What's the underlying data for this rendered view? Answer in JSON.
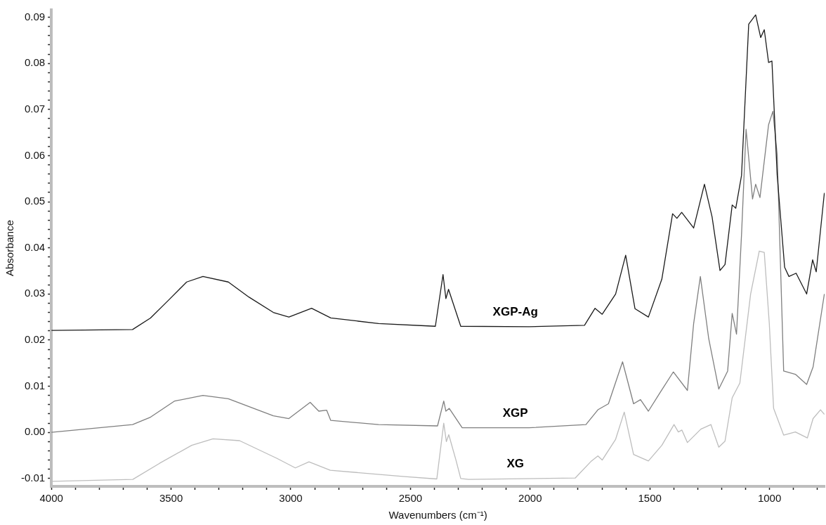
{
  "chart_data": {
    "type": "line",
    "xlabel": "Wavenumbers (cm⁻¹)",
    "ylabel": "Absorbance",
    "xlim": [
      4000,
      770
    ],
    "ylim": [
      -0.0117,
      0.0916
    ],
    "xticks": [
      4000,
      {
        "value": 3900,
        "label": null
      },
      {
        "value": 3800,
        "label": null
      },
      {
        "value": 3700,
        "label": null
      },
      {
        "value": 3600,
        "label": null
      },
      3500,
      {
        "value": 3400,
        "label": null
      },
      {
        "value": 3300,
        "label": null
      },
      {
        "value": 3200,
        "label": null
      },
      {
        "value": 3100,
        "label": null
      },
      3000,
      {
        "value": 2900,
        "label": null
      },
      {
        "value": 2800,
        "label": null
      },
      {
        "value": 2700,
        "label": null
      },
      {
        "value": 2600,
        "label": null
      },
      2500,
      {
        "value": 2400,
        "label": null
      },
      {
        "value": 2300,
        "label": null
      },
      {
        "value": 2200,
        "label": null
      },
      {
        "value": 2100,
        "label": null
      },
      2000,
      {
        "value": 1900,
        "label": null
      },
      {
        "value": 1800,
        "label": null
      },
      {
        "value": 1700,
        "label": null
      },
      {
        "value": 1600,
        "label": null
      },
      1500,
      {
        "value": 1400,
        "label": null
      },
      {
        "value": 1300,
        "label": null
      },
      {
        "value": 1200,
        "label": null
      },
      {
        "value": 1100,
        "label": null
      },
      1000,
      {
        "value": 900,
        "label": null
      },
      {
        "value": 800,
        "label": null
      }
    ],
    "yticks": [
      -0.01,
      {
        "value": -0.008,
        "label": null
      },
      {
        "value": -0.006,
        "label": null
      },
      {
        "value": -0.004,
        "label": null
      },
      {
        "value": -0.002,
        "label": null
      },
      {
        "value": 0,
        "label": "0.00"
      },
      {
        "value": 0.002,
        "label": null
      },
      {
        "value": 0.004,
        "label": null
      },
      {
        "value": 0.006,
        "label": null
      },
      {
        "value": 0.008,
        "label": null
      },
      0.01,
      {
        "value": 0.012,
        "label": null
      },
      {
        "value": 0.014,
        "label": null
      },
      {
        "value": 0.016,
        "label": null
      },
      {
        "value": 0.018,
        "label": null
      },
      0.02,
      {
        "value": 0.022,
        "label": null
      },
      {
        "value": 0.024,
        "label": null
      },
      {
        "value": 0.026,
        "label": null
      },
      {
        "value": 0.028,
        "label": null
      },
      0.03,
      {
        "value": 0.032,
        "label": null
      },
      {
        "value": 0.034,
        "label": null
      },
      {
        "value": 0.036,
        "label": null
      },
      {
        "value": 0.038,
        "label": null
      },
      0.04,
      {
        "value": 0.042,
        "label": null
      },
      {
        "value": 0.044,
        "label": null
      },
      {
        "value": 0.046,
        "label": null
      },
      {
        "value": 0.048,
        "label": null
      },
      0.05,
      {
        "value": 0.052,
        "label": null
      },
      {
        "value": 0.054,
        "label": null
      },
      {
        "value": 0.056,
        "label": null
      },
      {
        "value": 0.058,
        "label": null
      },
      0.06,
      {
        "value": 0.062,
        "label": null
      },
      {
        "value": 0.064,
        "label": null
      },
      {
        "value": 0.066,
        "label": null
      },
      {
        "value": 0.068,
        "label": null
      },
      0.07,
      {
        "value": 0.072,
        "label": null
      },
      {
        "value": 0.074,
        "label": null
      },
      {
        "value": 0.076,
        "label": null
      },
      {
        "value": 0.078,
        "label": null
      },
      0.08,
      {
        "value": 0.082,
        "label": null
      },
      {
        "value": 0.084,
        "label": null
      },
      {
        "value": 0.086,
        "label": null
      },
      {
        "value": 0.088,
        "label": null
      },
      0.09
    ],
    "grid": false,
    "legend": false,
    "marker": "none",
    "line_style": "solid",
    "series": [
      {
        "name": "XGP-Ag",
        "color": "#1a1a1a",
        "x": [
          4000,
          3661,
          3586,
          3510,
          3435,
          3367,
          3261,
          3174,
          3073,
          3008,
          2913,
          2833,
          2633,
          2396,
          2364,
          2352,
          2341,
          2290,
          2005,
          1773,
          1729,
          1699,
          1643,
          1601,
          1562,
          1506,
          1450,
          1405,
          1387,
          1367,
          1317,
          1272,
          1240,
          1207,
          1186,
          1156,
          1141,
          1117,
          1087,
          1058,
          1037,
          1022,
          1004,
          990,
          968,
          937,
          919,
          889,
          845,
          820,
          805,
          771
        ],
        "values": [
          0.0221,
          0.0223,
          0.0248,
          0.0287,
          0.0326,
          0.0338,
          0.0326,
          0.0293,
          0.026,
          0.025,
          0.0269,
          0.0248,
          0.0236,
          0.023,
          0.0342,
          0.029,
          0.031,
          0.023,
          0.0229,
          0.0232,
          0.0269,
          0.0256,
          0.03,
          0.0384,
          0.0268,
          0.025,
          0.0332,
          0.0474,
          0.0464,
          0.0477,
          0.0443,
          0.0538,
          0.0467,
          0.0351,
          0.0364,
          0.0493,
          0.0486,
          0.0557,
          0.0885,
          0.0905,
          0.0856,
          0.0873,
          0.0802,
          0.0805,
          0.0557,
          0.0358,
          0.0338,
          0.0345,
          0.03,
          0.0374,
          0.0348,
          0.0519
        ]
      },
      {
        "name": "XGP",
        "color": "#7f7f7f",
        "x": [
          4000,
          3661,
          3586,
          3485,
          3367,
          3261,
          3073,
          3008,
          2919,
          2883,
          2850,
          2833,
          2633,
          2387,
          2361,
          2352,
          2338,
          2284,
          2005,
          1767,
          1717,
          1673,
          1614,
          1568,
          1539,
          1506,
          1455,
          1402,
          1343,
          1317,
          1289,
          1254,
          1212,
          1175,
          1156,
          1138,
          1117,
          1098,
          1071,
          1058,
          1040,
          1004,
          986,
          968,
          941,
          892,
          845,
          818,
          771
        ],
        "values": [
          0.0,
          0.0017,
          0.0033,
          0.0068,
          0.008,
          0.0073,
          0.0036,
          0.003,
          0.0065,
          0.0046,
          0.0048,
          0.0026,
          0.0017,
          0.0014,
          0.0068,
          0.0046,
          0.0052,
          0.001,
          0.001,
          0.0017,
          0.0049,
          0.0062,
          0.0153,
          0.0062,
          0.0071,
          0.0046,
          0.0088,
          0.0131,
          0.0091,
          0.0236,
          0.0338,
          0.0203,
          0.0094,
          0.0133,
          0.0258,
          0.0213,
          0.0429,
          0.0657,
          0.0506,
          0.0538,
          0.0509,
          0.0667,
          0.0696,
          0.0602,
          0.0133,
          0.0126,
          0.0104,
          0.0142,
          0.03
        ]
      },
      {
        "name": "XG",
        "color": "#bdbdbd",
        "x": [
          4000,
          3660,
          3548,
          3414,
          3325,
          3214,
          3059,
          2981,
          2924,
          2835,
          2524,
          2390,
          2361,
          2350,
          2340,
          2310,
          2290,
          2257,
          1812,
          1744,
          1717,
          1699,
          1643,
          1607,
          1568,
          1506,
          1450,
          1399,
          1381,
          1366,
          1343,
          1287,
          1245,
          1212,
          1186,
          1156,
          1124,
          1079,
          1043,
          1022,
          1001,
          983,
          941,
          892,
          842,
          818,
          787,
          771
        ],
        "values": [
          -0.0106,
          -0.0102,
          -0.0067,
          -0.0028,
          -0.0014,
          -0.0018,
          -0.0056,
          -0.0077,
          -0.0064,
          -0.0082,
          -0.0096,
          -0.0101,
          0.002,
          -0.002,
          -0.0005,
          -0.006,
          -0.01,
          -0.0102,
          -0.0099,
          -0.0062,
          -0.0051,
          -0.006,
          -0.0015,
          0.0044,
          -0.0048,
          -0.0062,
          -0.0028,
          0.0017,
          0.0001,
          0.0005,
          -0.0022,
          0.0007,
          0.0017,
          -0.0032,
          -0.0019,
          0.0075,
          0.0107,
          0.03,
          0.0393,
          0.039,
          0.0236,
          0.0052,
          -0.0006,
          0.0001,
          -0.0012,
          0.003,
          0.0049,
          0.0039
        ]
      }
    ]
  }
}
